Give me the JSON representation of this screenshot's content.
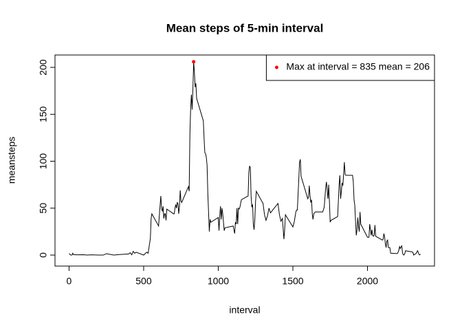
{
  "chart_data": {
    "type": "line",
    "title": "Mean steps of 5-min interval",
    "x_label": "interval",
    "y_label": "meansteps",
    "xlim": [
      -94.2,
      2449.2
    ],
    "ylim": [
      -11.7,
      213.2
    ],
    "xticks": [
      0,
      500,
      1000,
      1500,
      2000
    ],
    "yticks": [
      0,
      50,
      100,
      150,
      200
    ],
    "legend": "topright",
    "series": [
      {
        "color": "#000000",
        "x": [
          0,
          10,
          20,
          25,
          30,
          50,
          100,
          110,
          120,
          150,
          200,
          230,
          250,
          300,
          330,
          400,
          410,
          420,
          430,
          440,
          450,
          500,
          520,
          530,
          545,
          550,
          555,
          600,
          610,
          615,
          620,
          625,
          630,
          635,
          640,
          645,
          650,
          655,
          700,
          705,
          710,
          715,
          720,
          725,
          730,
          735,
          740,
          745,
          750,
          755,
          800,
          805,
          810,
          815,
          820,
          825,
          830,
          835,
          840,
          845,
          850,
          855,
          900,
          905,
          910,
          915,
          920,
          925,
          930,
          940,
          945,
          950,
          1000,
          1005,
          1010,
          1015,
          1020,
          1025,
          1030,
          1040,
          1045,
          1100,
          1110,
          1115,
          1120,
          1125,
          1130,
          1135,
          1140,
          1145,
          1155,
          1200,
          1205,
          1210,
          1215,
          1220,
          1225,
          1230,
          1235,
          1240,
          1245,
          1250,
          1255,
          1300,
          1310,
          1320,
          1330,
          1340,
          1350,
          1400,
          1410,
          1420,
          1430,
          1440,
          1445,
          1450,
          1500,
          1510,
          1520,
          1525,
          1530,
          1540,
          1545,
          1550,
          1555,
          1600,
          1605,
          1610,
          1615,
          1620,
          1625,
          1630,
          1635,
          1640,
          1650,
          1700,
          1710,
          1720,
          1725,
          1730,
          1735,
          1740,
          1745,
          1750,
          1755,
          1800,
          1805,
          1810,
          1815,
          1820,
          1825,
          1830,
          1835,
          1840,
          1845,
          1850,
          1855,
          1900,
          1905,
          1910,
          1915,
          1920,
          1925,
          1930,
          1935,
          1940,
          1945,
          1950,
          1955,
          2000,
          2005,
          2010,
          2015,
          2020,
          2025,
          2030,
          2035,
          2040,
          2045,
          2050,
          2055,
          2100,
          2105,
          2110,
          2115,
          2120,
          2125,
          2130,
          2135,
          2140,
          2145,
          2150,
          2155,
          2200,
          2205,
          2210,
          2215,
          2220,
          2225,
          2230,
          2235,
          2240,
          2245,
          2250,
          2255,
          2300,
          2305,
          2310,
          2315,
          2320,
          2325,
          2330,
          2335,
          2340,
          2345,
          2350,
          2355
        ],
        "values": [
          1.7,
          0.1,
          0,
          2,
          0.5,
          0.3,
          0.4,
          0.2,
          0,
          0.3,
          0,
          0,
          1.5,
          0,
          0.5,
          1.2,
          2.5,
          0.3,
          4,
          2,
          3,
          0,
          3,
          2,
          18,
          39,
          44,
          31,
          53,
          63,
          49,
          47,
          52,
          39,
          44,
          44,
          37,
          49,
          44,
          44,
          50,
          54,
          50,
          56,
          55,
          44,
          52,
          69,
          58,
          56,
          73,
          68,
          129,
          157,
          171,
          155,
          177,
          206,
          195,
          179,
          183,
          167,
          143,
          124,
          109,
          108,
          104,
          96,
          66,
          25,
          38,
          35,
          40,
          26,
          42,
          52,
          38,
          50,
          44,
          26,
          29,
          31,
          23,
          35,
          33,
          50,
          33,
          50,
          49,
          51,
          59,
          63,
          88,
          95,
          93,
          63,
          51,
          54,
          33,
          27,
          38,
          57,
          68,
          55,
          43,
          37,
          42,
          50,
          45,
          55,
          43,
          36,
          39,
          17,
          27,
          43,
          30,
          36,
          46,
          48,
          48,
          82,
          99,
          102,
          84,
          60,
          62,
          74,
          63,
          56,
          59,
          44,
          38,
          44,
          46,
          46,
          51,
          72,
          78,
          69,
          60,
          75,
          57,
          35,
          37,
          41,
          58,
          75,
          85,
          60,
          68,
          77,
          74,
          86,
          99,
          86,
          85,
          85,
          78,
          59,
          53,
          36,
          21,
          27,
          40,
          30,
          25,
          46,
          33,
          19,
          19,
          19,
          33,
          27,
          21,
          27,
          21,
          20,
          21,
          32,
          20,
          16,
          17,
          23,
          19,
          12,
          8,
          15,
          16,
          8,
          8,
          8,
          2,
          1.6,
          3,
          5,
          9,
          7,
          8.7,
          9.8,
          2.2,
          0.3,
          0.1,
          1.6,
          4.6,
          3.3,
          2.8,
          0,
          0.8,
          1,
          1.6,
          2.6,
          4.7,
          3.3,
          0.6,
          0.2,
          1.1
        ]
      },
      {
        "name": "Max at interval = 835 mean = 206",
        "color": "#ff0000",
        "x": [
          835
        ],
        "values": [
          206
        ]
      }
    ]
  }
}
